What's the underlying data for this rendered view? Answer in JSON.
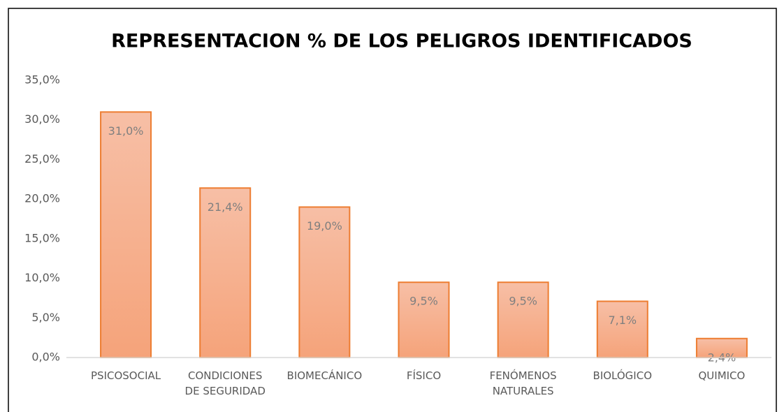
{
  "chart_data": {
    "type": "bar",
    "title": "REPRESENTACION % DE LOS PELIGROS IDENTIFICADOS",
    "categories": [
      "PSICOSOCIAL",
      "CONDICIONES DE SEGURIDAD",
      "BIOMECÁNICO",
      "FÍSICO",
      "FENÓMENOS NATURALES",
      "BIOLÓGICO",
      "QUIMICO"
    ],
    "values": [
      31.0,
      21.4,
      19.0,
      9.5,
      9.5,
      7.1,
      2.4
    ],
    "value_labels": [
      "31,0%",
      "21,4%",
      "19,0%",
      "9,5%",
      "9,5%",
      "7,1%",
      "2,4%"
    ],
    "color": "#ed7d31",
    "ylim": [
      0,
      35
    ],
    "yticks": [
      {
        "value": 0,
        "label": "0,0%"
      },
      {
        "value": 5,
        "label": "5,0%"
      },
      {
        "value": 10,
        "label": "10,0%"
      },
      {
        "value": 15,
        "label": "15,0%"
      },
      {
        "value": 20,
        "label": "20,0%"
      },
      {
        "value": 25,
        "label": "25,0%"
      },
      {
        "value": 30,
        "label": "30,0%"
      },
      {
        "value": 35,
        "label": "35,0%"
      }
    ],
    "grid": false
  }
}
